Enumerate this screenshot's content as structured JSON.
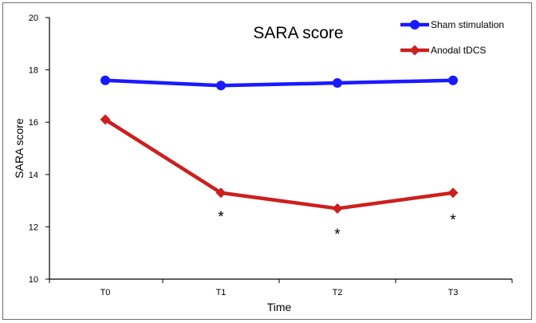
{
  "chart_data": {
    "type": "line",
    "title": "SARA score",
    "xlabel": "Time",
    "ylabel": "SARA score",
    "categories": [
      "T0",
      "T1",
      "T2",
      "T3"
    ],
    "ylim": [
      10,
      20
    ],
    "yticks": [
      10,
      12,
      14,
      16,
      18,
      20
    ],
    "grid": false,
    "legend_position": "top-right",
    "series": [
      {
        "name": "Sham stimulation",
        "values": [
          17.6,
          17.4,
          17.5,
          17.6
        ],
        "color": "#1a1aff",
        "marker": "circle"
      },
      {
        "name": "Anodal tDCS",
        "values": [
          16.1,
          13.3,
          12.7,
          13.3
        ],
        "color": "#cc1f1f",
        "marker": "diamond"
      }
    ],
    "annotations": [
      {
        "text": "*",
        "category": "T1"
      },
      {
        "text": "*",
        "category": "T2"
      },
      {
        "text": "*",
        "category": "T3"
      }
    ]
  }
}
